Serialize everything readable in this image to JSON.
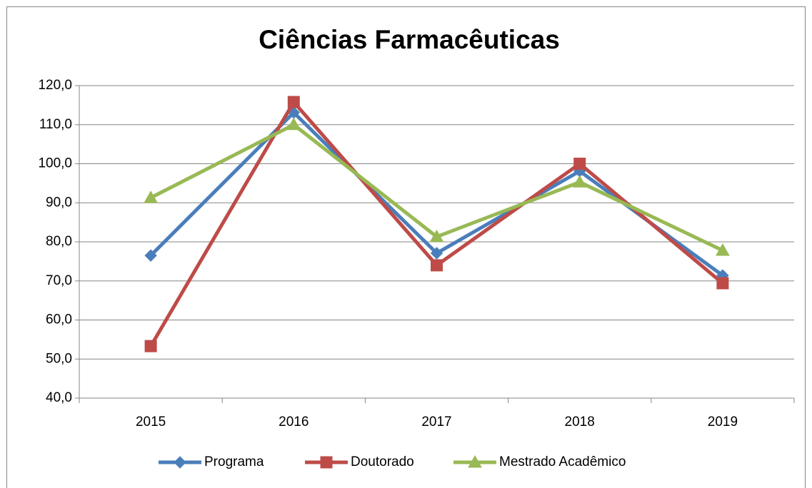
{
  "chart_data": {
    "type": "line",
    "title": "Ciências Farmacêuticas",
    "categories": [
      "2015",
      "2016",
      "2017",
      "2018",
      "2019"
    ],
    "series": [
      {
        "name": "Programa",
        "color": "#4a7ebb",
        "marker": "diamond",
        "values": [
          76.5,
          113.1,
          77.1,
          98.1,
          71.4
        ]
      },
      {
        "name": "Doutorado",
        "color": "#be4b48",
        "marker": "square",
        "values": [
          53.3,
          115.8,
          74.0,
          100.0,
          69.4
        ]
      },
      {
        "name": "Mestrado Acadêmico",
        "color": "#98b954",
        "marker": "triangle",
        "values": [
          91.3,
          110.0,
          81.3,
          95.3,
          77.8
        ]
      }
    ],
    "ylim": [
      40,
      120
    ],
    "yticks": [
      {
        "value": 40,
        "label": "40,0"
      },
      {
        "value": 50,
        "label": "50,0"
      },
      {
        "value": 60,
        "label": "60,0"
      },
      {
        "value": 70,
        "label": "70,0"
      },
      {
        "value": 80,
        "label": "80,0"
      },
      {
        "value": 90,
        "label": "90,0"
      },
      {
        "value": 100,
        "label": "100,0"
      },
      {
        "value": 110,
        "label": "110,0"
      },
      {
        "value": 120,
        "label": "120,0"
      }
    ],
    "grid": true,
    "legend": "bottom"
  }
}
